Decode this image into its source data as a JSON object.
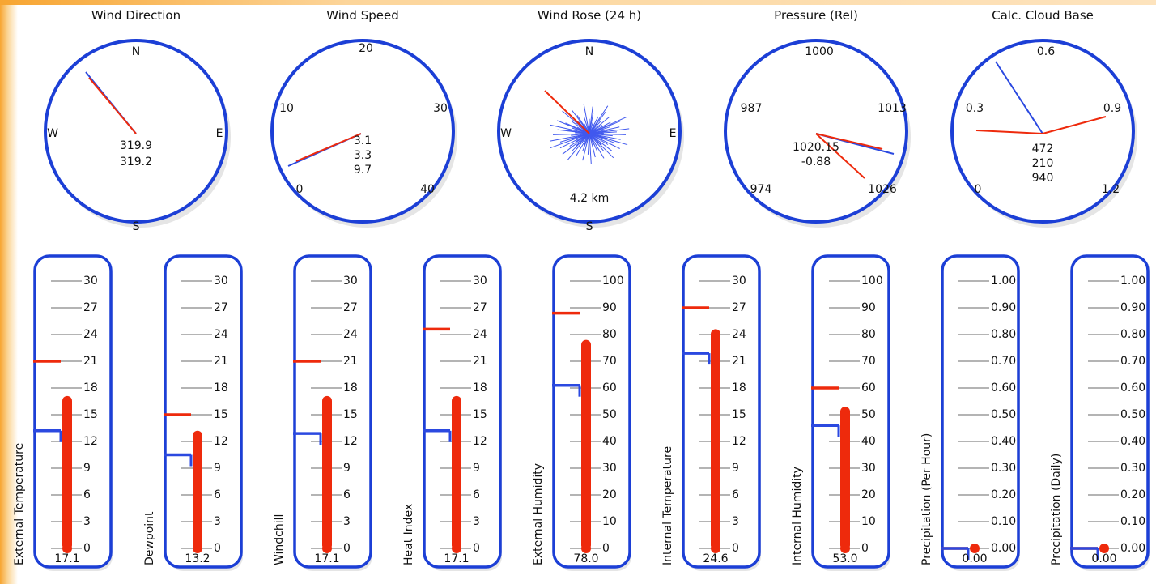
{
  "dials": [
    {
      "id": "wind-direction",
      "title": "Wind Direction",
      "labels": [
        "N",
        "E",
        "S",
        "W"
      ],
      "readouts": [
        "319.9",
        "319.2"
      ]
    },
    {
      "id": "wind-speed",
      "title": "Wind Speed",
      "labels": [
        "20",
        "30",
        "40",
        "0",
        "10"
      ],
      "readouts": [
        "3.1",
        "3.3",
        "9.7"
      ]
    },
    {
      "id": "wind-rose",
      "title": "Wind Rose (24 h)",
      "labels": [
        "N",
        "E",
        "S",
        "W"
      ],
      "readouts": [
        "4.2 km"
      ]
    },
    {
      "id": "pressure",
      "title": "Pressure (Rel)",
      "labels": [
        "1000",
        "1013",
        "1026",
        "974",
        "987"
      ],
      "readouts": [
        "1020.15",
        "-0.88"
      ]
    },
    {
      "id": "cloud-base",
      "title": "Calc. Cloud Base",
      "labels": [
        "0.6",
        "0.9",
        "1.2",
        "0",
        "0.3"
      ],
      "readouts": [
        "472",
        "210",
        "940"
      ]
    }
  ],
  "gauges": [
    {
      "label": "External Temperature",
      "value": "17.1",
      "ticks": [
        "30",
        "27",
        "24",
        "21",
        "18",
        "15",
        "12",
        "9",
        "6",
        "3",
        "0"
      ],
      "level": 0.57,
      "max_marker": 0.7,
      "min_marker": 0.44
    },
    {
      "label": "Dewpoint",
      "value": "13.2",
      "ticks": [
        "30",
        "27",
        "24",
        "21",
        "18",
        "15",
        "12",
        "9",
        "6",
        "3",
        "0"
      ],
      "level": 0.44,
      "max_marker": 0.5,
      "min_marker": 0.35
    },
    {
      "label": "Windchill",
      "value": "17.1",
      "ticks": [
        "30",
        "27",
        "24",
        "21",
        "18",
        "15",
        "12",
        "9",
        "6",
        "3",
        "0"
      ],
      "level": 0.57,
      "max_marker": 0.7,
      "min_marker": 0.43
    },
    {
      "label": "Heat Index",
      "value": "17.1",
      "ticks": [
        "30",
        "27",
        "24",
        "21",
        "18",
        "15",
        "12",
        "9",
        "6",
        "3",
        "0"
      ],
      "level": 0.57,
      "max_marker": 0.82,
      "min_marker": 0.44
    },
    {
      "label": "External Humidity",
      "value": "78.0",
      "ticks": [
        "100",
        "90",
        "80",
        "70",
        "60",
        "50",
        "40",
        "30",
        "20",
        "10",
        "0"
      ],
      "level": 0.78,
      "max_marker": 0.88,
      "min_marker": 0.61
    },
    {
      "label": "Internal Temperature",
      "value": "24.6",
      "ticks": [
        "30",
        "27",
        "24",
        "21",
        "18",
        "15",
        "12",
        "9",
        "6",
        "3",
        "0"
      ],
      "level": 0.82,
      "max_marker": 0.9,
      "min_marker": 0.73
    },
    {
      "label": "Internal Humidity",
      "value": "53.0",
      "ticks": [
        "100",
        "90",
        "80",
        "70",
        "60",
        "50",
        "40",
        "30",
        "20",
        "10",
        "0"
      ],
      "level": 0.53,
      "max_marker": 0.6,
      "min_marker": 0.46
    },
    {
      "label": "Precipitation (Per Hour)",
      "value": "0.00",
      "ticks": [
        "1.00",
        "0.90",
        "0.80",
        "0.70",
        "0.60",
        "0.50",
        "0.40",
        "0.30",
        "0.20",
        "0.10",
        "0.00"
      ],
      "level": 0.0,
      "max_marker": 0.0,
      "min_marker": 0.0
    },
    {
      "label": "Precipitation (Daily)",
      "value": "0.00",
      "ticks": [
        "1.00",
        "0.90",
        "0.80",
        "0.70",
        "0.60",
        "0.50",
        "0.40",
        "0.30",
        "0.20",
        "0.10",
        "0.00"
      ],
      "level": 0.0,
      "max_marker": 0.0,
      "min_marker": 0.0
    }
  ],
  "colors": {
    "frame": "#1c3fd6",
    "red": "#ee2a0c",
    "blue": "#2b49e0",
    "gray": "#999999"
  }
}
